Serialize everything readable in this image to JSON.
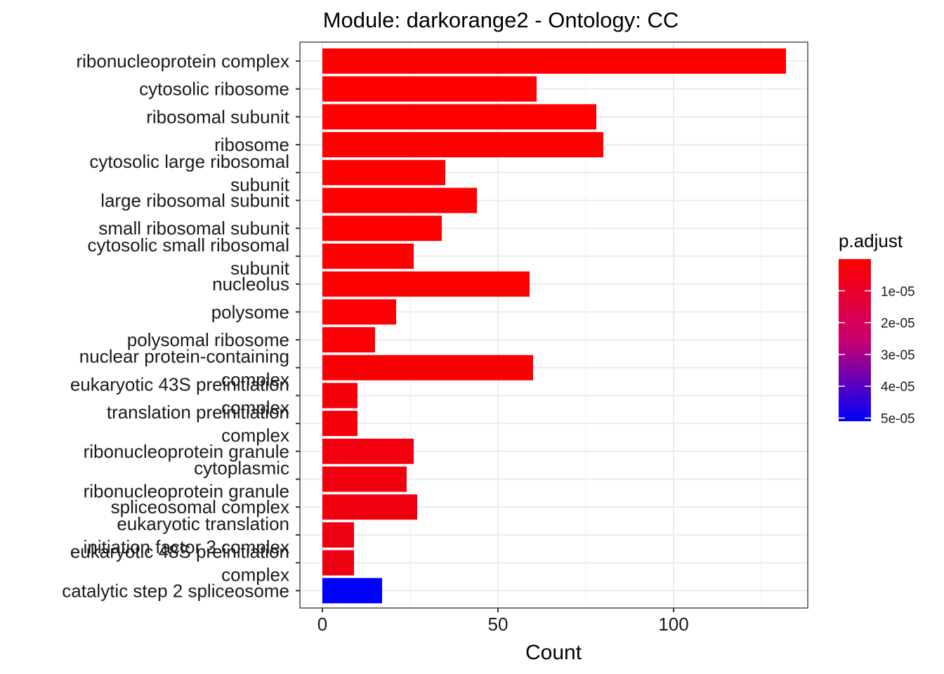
{
  "chart_data": {
    "type": "bar",
    "orientation": "horizontal",
    "title": "Module: darkorange2 - Ontology: CC",
    "xlabel": "Count",
    "ylabel": "",
    "xlim": [
      -3,
      138
    ],
    "x_ticks": [
      0,
      50,
      100
    ],
    "x_tick_labels": [
      "0",
      "50",
      "100"
    ],
    "grid": true,
    "categories": [
      [
        "ribonucleoprotein complex"
      ],
      [
        "cytosolic ribosome"
      ],
      [
        "ribosomal subunit"
      ],
      [
        "ribosome"
      ],
      [
        "cytosolic large ribosomal",
        "subunit"
      ],
      [
        "large ribosomal subunit"
      ],
      [
        "small ribosomal subunit"
      ],
      [
        "cytosolic small ribosomal",
        "subunit"
      ],
      [
        "nucleolus"
      ],
      [
        "polysome"
      ],
      [
        "polysomal ribosome"
      ],
      [
        "nuclear protein-containing",
        "complex"
      ],
      [
        "eukaryotic 43S preinitiation",
        "complex"
      ],
      [
        "translation preinitiation",
        "complex"
      ],
      [
        "ribonucleoprotein granule"
      ],
      [
        "cytoplasmic",
        "ribonucleoprotein granule"
      ],
      [
        "spliceosomal complex"
      ],
      [
        "eukaryotic translation",
        "initiation factor 3 complex"
      ],
      [
        "eukaryotic 48S preinitiation",
        "complex"
      ],
      [
        "catalytic step 2 spliceosome"
      ]
    ],
    "values": [
      132,
      61,
      78,
      80,
      35,
      44,
      34,
      26,
      59,
      21,
      15,
      60,
      10,
      10,
      26,
      24,
      27,
      9,
      9,
      17
    ],
    "p_adjust": [
      1e-08,
      1e-08,
      1e-08,
      1e-08,
      1e-07,
      1e-07,
      2e-07,
      2e-07,
      5e-07,
      6e-07,
      8e-07,
      1e-06,
      2e-06,
      2e-06,
      2.6e-06,
      2.8e-06,
      3e-06,
      3.6e-06,
      3.7e-06,
      5.1e-05
    ],
    "legend": {
      "title": "p.adjust",
      "placement": "right",
      "ticks": [
        1e-05,
        2e-05,
        3e-05,
        4e-05,
        5e-05
      ],
      "tick_labels": [
        "1e-05",
        "2e-05",
        "3e-05",
        "4e-05",
        "5e-05"
      ],
      "range": [
        1e-08,
        5.1e-05
      ],
      "color_low_p": "#ff0000",
      "color_high_p": "#0000ff"
    }
  }
}
